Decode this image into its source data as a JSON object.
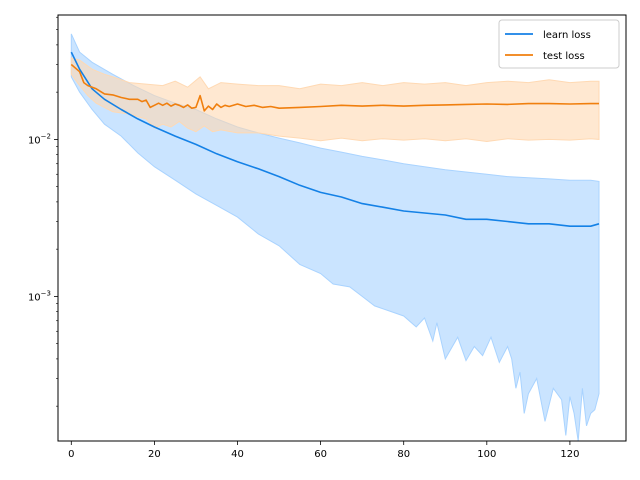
{
  "chart_data": {
    "type": "line",
    "title": "",
    "xlabel": "",
    "ylabel": "",
    "yscale": "log",
    "xlim": [
      -3.2,
      133.5
    ],
    "ylim": [
      0.00012,
      0.062
    ],
    "x_ticks": [
      0,
      20,
      40,
      60,
      80,
      100,
      120
    ],
    "x_tick_labels": [
      "0",
      "20",
      "40",
      "60",
      "80",
      "100",
      "120"
    ],
    "y_major_ticks": [
      0.001,
      0.01
    ],
    "y_tick_labels": [
      "10^{-3}",
      "10^{-2}"
    ],
    "y_minor_ticks": [
      0.0002,
      0.0003,
      0.0004,
      0.0005,
      0.0006,
      0.0007,
      0.0008,
      0.0009,
      0.002,
      0.003,
      0.004,
      0.005,
      0.006,
      0.007,
      0.008,
      0.009,
      0.02,
      0.03,
      0.04,
      0.05,
      0.06
    ],
    "grid": false,
    "legend_position": "top-right",
    "series": [
      {
        "name": "learn loss",
        "color": "#1481e6",
        "band_color": "#a9d3ff",
        "mean": [
          [
            0,
            0.036
          ],
          [
            2,
            0.028
          ],
          [
            5,
            0.021
          ],
          [
            8,
            0.018
          ],
          [
            12,
            0.0155
          ],
          [
            16,
            0.0135
          ],
          [
            20,
            0.012
          ],
          [
            25,
            0.0105
          ],
          [
            30,
            0.0093
          ],
          [
            35,
            0.0081
          ],
          [
            40,
            0.0072
          ],
          [
            45,
            0.0065
          ],
          [
            50,
            0.0058
          ],
          [
            55,
            0.0051
          ],
          [
            60,
            0.0046
          ],
          [
            65,
            0.0043
          ],
          [
            70,
            0.0039
          ],
          [
            75,
            0.0037
          ],
          [
            80,
            0.0035
          ],
          [
            85,
            0.0034
          ],
          [
            90,
            0.0033
          ],
          [
            95,
            0.0031
          ],
          [
            100,
            0.0031
          ],
          [
            105,
            0.003
          ],
          [
            110,
            0.0029
          ],
          [
            115,
            0.0029
          ],
          [
            120,
            0.0028
          ],
          [
            125,
            0.0028
          ],
          [
            127,
            0.0029
          ]
        ],
        "upper": [
          [
            0,
            0.047
          ],
          [
            2,
            0.036
          ],
          [
            5,
            0.031
          ],
          [
            10,
            0.026
          ],
          [
            15,
            0.022
          ],
          [
            20,
            0.019
          ],
          [
            25,
            0.017
          ],
          [
            30,
            0.0155
          ],
          [
            35,
            0.0135
          ],
          [
            40,
            0.012
          ],
          [
            45,
            0.011
          ],
          [
            50,
            0.0102
          ],
          [
            55,
            0.0095
          ],
          [
            60,
            0.0088
          ],
          [
            65,
            0.0083
          ],
          [
            70,
            0.0078
          ],
          [
            75,
            0.0074
          ],
          [
            80,
            0.007
          ],
          [
            85,
            0.0067
          ],
          [
            90,
            0.0064
          ],
          [
            95,
            0.0062
          ],
          [
            100,
            0.006
          ],
          [
            105,
            0.0058
          ],
          [
            110,
            0.0057
          ],
          [
            115,
            0.0056
          ],
          [
            120,
            0.0055
          ],
          [
            125,
            0.0055
          ],
          [
            127,
            0.0054
          ]
        ],
        "lower": [
          [
            0,
            0.025
          ],
          [
            2,
            0.02
          ],
          [
            5,
            0.0155
          ],
          [
            8,
            0.0125
          ],
          [
            12,
            0.0105
          ],
          [
            16,
            0.0082
          ],
          [
            20,
            0.0067
          ],
          [
            25,
            0.0055
          ],
          [
            30,
            0.0045
          ],
          [
            35,
            0.0038
          ],
          [
            40,
            0.0032
          ],
          [
            45,
            0.0025
          ],
          [
            50,
            0.0021
          ],
          [
            55,
            0.0016
          ],
          [
            60,
            0.0014
          ],
          [
            63,
            0.0012
          ],
          [
            67,
            0.00115
          ],
          [
            70,
            0.001
          ],
          [
            73,
            0.00087
          ],
          [
            77,
            0.0008
          ],
          [
            80,
            0.00075
          ],
          [
            83,
            0.00064
          ],
          [
            85,
            0.00073
          ],
          [
            87,
            0.00052
          ],
          [
            88,
            0.00068
          ],
          [
            90,
            0.0004
          ],
          [
            93,
            0.00055
          ],
          [
            95,
            0.00039
          ],
          [
            97,
            0.00048
          ],
          [
            99,
            0.00042
          ],
          [
            101,
            0.00055
          ],
          [
            103,
            0.00038
          ],
          [
            105,
            0.00048
          ],
          [
            106,
            0.0004
          ],
          [
            107,
            0.00026
          ],
          [
            108,
            0.00033
          ],
          [
            109,
            0.00018
          ],
          [
            110,
            0.00024
          ],
          [
            112,
            0.0003
          ],
          [
            114,
            0.00016
          ],
          [
            116,
            0.00026
          ],
          [
            118,
            0.00022
          ],
          [
            119,
            0.00013
          ],
          [
            120,
            0.00023
          ],
          [
            121,
            0.00018
          ],
          [
            122,
            0.00012
          ],
          [
            123,
            0.00026
          ],
          [
            124,
            0.00015
          ],
          [
            125,
            0.00018
          ],
          [
            126,
            0.00019
          ],
          [
            127,
            0.00024
          ]
        ]
      },
      {
        "name": "test loss",
        "color": "#f07f0e",
        "band_color": "#ffd9b3",
        "mean": [
          [
            0,
            0.03
          ],
          [
            2,
            0.027
          ],
          [
            3,
            0.023
          ],
          [
            4,
            0.022
          ],
          [
            6,
            0.021
          ],
          [
            8,
            0.0195
          ],
          [
            10,
            0.0192
          ],
          [
            12,
            0.0185
          ],
          [
            14,
            0.018
          ],
          [
            16,
            0.018
          ],
          [
            17,
            0.0174
          ],
          [
            18,
            0.0178
          ],
          [
            19,
            0.016
          ],
          [
            20,
            0.0165
          ],
          [
            21,
            0.017
          ],
          [
            22,
            0.0165
          ],
          [
            23,
            0.017
          ],
          [
            24,
            0.0163
          ],
          [
            25,
            0.0168
          ],
          [
            26,
            0.0165
          ],
          [
            27,
            0.016
          ],
          [
            28,
            0.0166
          ],
          [
            29,
            0.0158
          ],
          [
            30,
            0.016
          ],
          [
            31,
            0.019
          ],
          [
            32,
            0.0152
          ],
          [
            33,
            0.0163
          ],
          [
            34,
            0.0155
          ],
          [
            35,
            0.0168
          ],
          [
            36,
            0.016
          ],
          [
            37,
            0.0165
          ],
          [
            38,
            0.0162
          ],
          [
            40,
            0.0168
          ],
          [
            42,
            0.0162
          ],
          [
            44,
            0.0165
          ],
          [
            46,
            0.016
          ],
          [
            48,
            0.0162
          ],
          [
            50,
            0.0158
          ],
          [
            55,
            0.016
          ],
          [
            60,
            0.0162
          ],
          [
            65,
            0.0165
          ],
          [
            70,
            0.0163
          ],
          [
            75,
            0.0165
          ],
          [
            80,
            0.0163
          ],
          [
            85,
            0.0165
          ],
          [
            90,
            0.0166
          ],
          [
            95,
            0.0167
          ],
          [
            100,
            0.0168
          ],
          [
            105,
            0.0167
          ],
          [
            110,
            0.0169
          ],
          [
            115,
            0.0169
          ],
          [
            120,
            0.0168
          ],
          [
            125,
            0.0169
          ],
          [
            127,
            0.0169
          ]
        ],
        "upper": [
          [
            0,
            0.033
          ],
          [
            2,
            0.032
          ],
          [
            5,
            0.028
          ],
          [
            8,
            0.026
          ],
          [
            10,
            0.025
          ],
          [
            14,
            0.023
          ],
          [
            18,
            0.0225
          ],
          [
            22,
            0.022
          ],
          [
            25,
            0.0235
          ],
          [
            28,
            0.0215
          ],
          [
            31,
            0.025
          ],
          [
            33,
            0.021
          ],
          [
            36,
            0.023
          ],
          [
            40,
            0.0225
          ],
          [
            45,
            0.022
          ],
          [
            50,
            0.022
          ],
          [
            55,
            0.021
          ],
          [
            60,
            0.0225
          ],
          [
            65,
            0.022
          ],
          [
            70,
            0.023
          ],
          [
            75,
            0.022
          ],
          [
            80,
            0.023
          ],
          [
            85,
            0.0225
          ],
          [
            90,
            0.023
          ],
          [
            95,
            0.022
          ],
          [
            100,
            0.023
          ],
          [
            105,
            0.0235
          ],
          [
            110,
            0.023
          ],
          [
            115,
            0.024
          ],
          [
            120,
            0.023
          ],
          [
            125,
            0.0235
          ],
          [
            127,
            0.0235
          ]
        ],
        "lower": [
          [
            0,
            0.026
          ],
          [
            2,
            0.022
          ],
          [
            4,
            0.019
          ],
          [
            6,
            0.017
          ],
          [
            10,
            0.015
          ],
          [
            14,
            0.0145
          ],
          [
            18,
            0.0135
          ],
          [
            20,
            0.0118
          ],
          [
            22,
            0.0125
          ],
          [
            24,
            0.012
          ],
          [
            26,
            0.013
          ],
          [
            28,
            0.0118
          ],
          [
            30,
            0.0112
          ],
          [
            32,
            0.0122
          ],
          [
            34,
            0.0112
          ],
          [
            36,
            0.0115
          ],
          [
            40,
            0.011
          ],
          [
            45,
            0.011
          ],
          [
            50,
            0.0105
          ],
          [
            55,
            0.0102
          ],
          [
            60,
            0.0098
          ],
          [
            65,
            0.0102
          ],
          [
            70,
            0.0098
          ],
          [
            75,
            0.0101
          ],
          [
            80,
            0.0099
          ],
          [
            85,
            0.0101
          ],
          [
            90,
            0.0098
          ],
          [
            95,
            0.0101
          ],
          [
            100,
            0.0097
          ],
          [
            105,
            0.0101
          ],
          [
            110,
            0.0099
          ],
          [
            115,
            0.01
          ],
          [
            120,
            0.0099
          ],
          [
            125,
            0.0101
          ],
          [
            127,
            0.01
          ]
        ]
      }
    ]
  }
}
